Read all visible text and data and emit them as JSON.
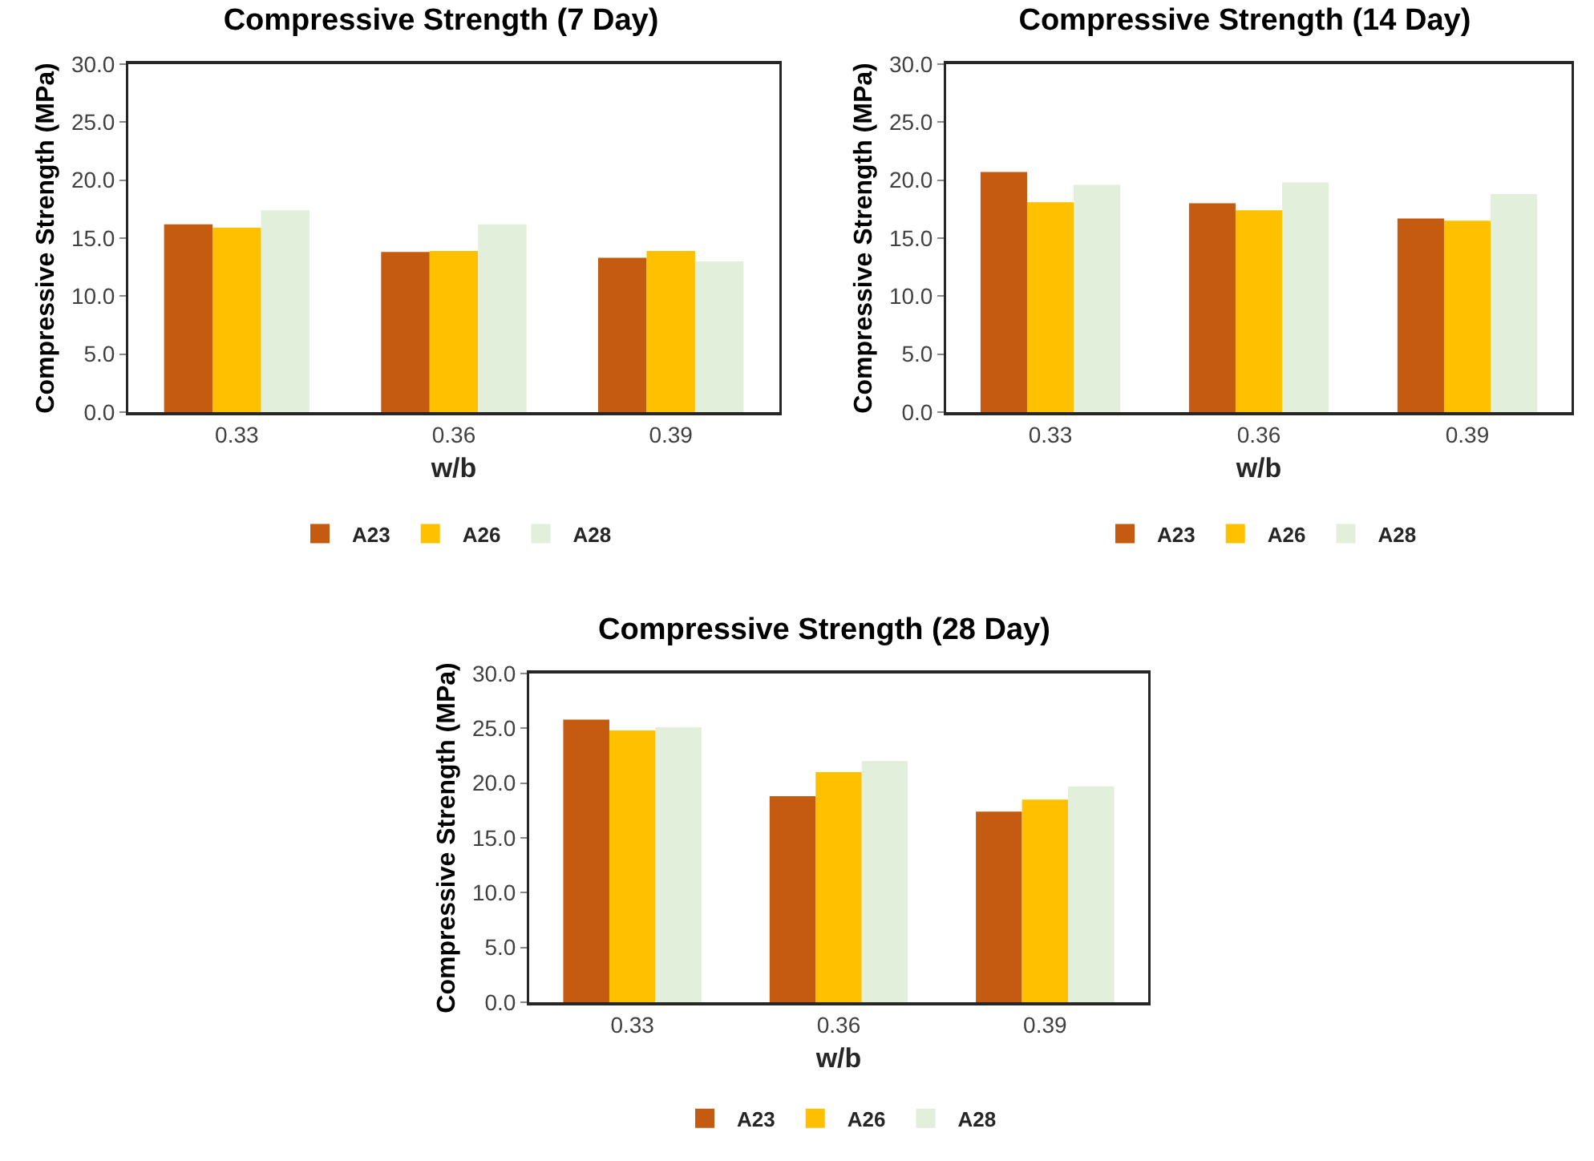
{
  "chart_data": [
    {
      "type": "bar",
      "title": "Compressive Strength (7 Day)",
      "xlabel": "w/b",
      "ylabel": "Compressive Strength (MPa)",
      "categories": [
        "0.33",
        "0.36",
        "0.39"
      ],
      "series": [
        {
          "name": "A23",
          "color": "#c55a11",
          "values": [
            16.2,
            13.8,
            13.3
          ]
        },
        {
          "name": "A26",
          "color": "#ffc000",
          "values": [
            15.9,
            13.9,
            13.9
          ]
        },
        {
          "name": "A28",
          "color": "#e2efda",
          "values": [
            17.4,
            16.2,
            13.0
          ]
        }
      ],
      "ylim": [
        0,
        30
      ],
      "yticks": [
        {
          "value": 0,
          "label": "0.0"
        },
        {
          "value": 5,
          "label": "5.0"
        },
        {
          "value": 10,
          "label": "10.0"
        },
        {
          "value": 15,
          "label": "15.0"
        },
        {
          "value": 20,
          "label": "20.0"
        },
        {
          "value": 25,
          "label": "25.0"
        },
        {
          "value": 30,
          "label": "30.0"
        }
      ],
      "grid": false,
      "legend": "bottom"
    },
    {
      "type": "bar",
      "title": "Compressive Strength (14 Day)",
      "xlabel": "w/b",
      "ylabel": "Compressive Strength (MPa)",
      "categories": [
        "0.33",
        "0.36",
        "0.39"
      ],
      "series": [
        {
          "name": "A23",
          "color": "#c55a11",
          "values": [
            20.7,
            18.0,
            16.7
          ]
        },
        {
          "name": "A26",
          "color": "#ffc000",
          "values": [
            18.1,
            17.4,
            16.5
          ]
        },
        {
          "name": "A28",
          "color": "#e2efda",
          "values": [
            19.6,
            19.8,
            18.8
          ]
        }
      ],
      "ylim": [
        0,
        30
      ],
      "yticks": [
        {
          "value": 0,
          "label": "0.0"
        },
        {
          "value": 5,
          "label": "5.0"
        },
        {
          "value": 10,
          "label": "10.0"
        },
        {
          "value": 15,
          "label": "15.0"
        },
        {
          "value": 20,
          "label": "20.0"
        },
        {
          "value": 25,
          "label": "25.0"
        },
        {
          "value": 30,
          "label": "30.0"
        }
      ],
      "grid": false,
      "legend": "bottom"
    },
    {
      "type": "bar",
      "title": "Compressive Strength (28 Day)",
      "xlabel": "w/b",
      "ylabel": "Compressive Strength (MPa)",
      "categories": [
        "0.33",
        "0.36",
        "0.39"
      ],
      "series": [
        {
          "name": "A23",
          "color": "#c55a11",
          "values": [
            25.8,
            18.8,
            17.4
          ]
        },
        {
          "name": "A26",
          "color": "#ffc000",
          "values": [
            24.8,
            21.0,
            18.5
          ]
        },
        {
          "name": "A28",
          "color": "#e2efda",
          "values": [
            25.1,
            22.0,
            19.7
          ]
        }
      ],
      "ylim": [
        0,
        30
      ],
      "yticks": [
        {
          "value": 0,
          "label": "0.0"
        },
        {
          "value": 5,
          "label": "5.0"
        },
        {
          "value": 10,
          "label": "10.0"
        },
        {
          "value": 15,
          "label": "15.0"
        },
        {
          "value": 20,
          "label": "20.0"
        },
        {
          "value": 25,
          "label": "25.0"
        },
        {
          "value": 30,
          "label": "30.0"
        }
      ],
      "grid": false,
      "legend": "bottom"
    }
  ]
}
